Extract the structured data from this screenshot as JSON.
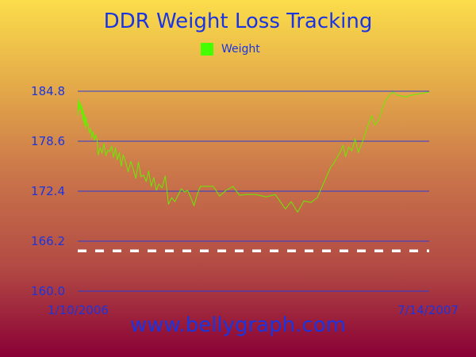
{
  "colors": {
    "text": "#1a35e0",
    "gridline": "#2a3bd6",
    "series": "#66ee00",
    "legend_swatch": "#44ff00",
    "goal_line": "#ffffff"
  },
  "footer": {
    "url": "www.bellygraph.com"
  },
  "chart_data": {
    "type": "line",
    "title": "DDR Weight Loss Tracking",
    "xlabel": "",
    "ylabel": "",
    "ylim": [
      160.0,
      184.8
    ],
    "yticks": [
      "160.0",
      "166.2",
      "172.4",
      "178.6",
      "184.8"
    ],
    "xlim": [
      "2006-01-10",
      "2007-07-14"
    ],
    "xtick_labels": [
      "1/10/2006",
      "7/14/2007"
    ],
    "grid": "horizontal",
    "legend": "top-center",
    "goal": {
      "value": 165.0,
      "style": "dashed"
    },
    "series": [
      {
        "name": "Weight",
        "x": [
          "2006-01-10",
          "2006-01-11",
          "2006-01-12",
          "2006-01-13",
          "2006-01-14",
          "2006-01-15",
          "2006-01-16",
          "2006-01-17",
          "2006-01-18",
          "2006-01-19",
          "2006-01-20",
          "2006-01-21",
          "2006-01-22",
          "2006-01-23",
          "2006-01-24",
          "2006-01-26",
          "2006-01-28",
          "2006-01-30",
          "2006-02-01",
          "2006-02-03",
          "2006-02-05",
          "2006-02-07",
          "2006-02-09",
          "2006-02-11",
          "2006-02-14",
          "2006-02-17",
          "2006-02-20",
          "2006-02-23",
          "2006-02-26",
          "2006-03-01",
          "2006-03-04",
          "2006-03-07",
          "2006-03-10",
          "2006-03-13",
          "2006-03-16",
          "2006-03-19",
          "2006-03-22",
          "2006-03-26",
          "2006-03-30",
          "2006-04-03",
          "2006-04-07",
          "2006-04-11",
          "2006-04-15",
          "2006-04-19",
          "2006-04-23",
          "2006-04-27",
          "2006-05-01",
          "2006-05-05",
          "2006-05-09",
          "2006-05-13",
          "2006-05-17",
          "2006-05-22",
          "2006-05-27",
          "2006-06-01",
          "2006-06-06",
          "2006-06-11",
          "2006-06-16",
          "2006-06-21",
          "2006-06-26",
          "2006-07-01",
          "2006-07-06",
          "2006-07-11",
          "2006-07-16",
          "2006-07-21",
          "2006-07-26",
          "2006-08-01",
          "2006-08-10",
          "2006-08-20",
          "2006-08-30",
          "2006-09-10",
          "2006-09-20",
          "2006-10-01",
          "2006-10-15",
          "2006-11-01",
          "2006-11-15",
          "2006-12-01",
          "2006-12-10",
          "2006-12-20",
          "2006-12-30",
          "2007-01-10",
          "2007-01-20",
          "2007-02-01",
          "2007-02-10",
          "2007-02-15",
          "2007-02-20",
          "2007-02-25",
          "2007-03-01",
          "2007-03-05",
          "2007-03-10",
          "2007-03-15",
          "2007-03-20",
          "2007-03-25",
          "2007-04-01",
          "2007-04-08",
          "2007-04-15",
          "2007-04-20",
          "2007-04-25",
          "2007-04-28",
          "2007-05-01",
          "2007-05-03",
          "2007-05-06",
          "2007-05-09",
          "2007-05-12",
          "2007-05-15",
          "2007-05-18",
          "2007-05-22",
          "2007-05-26",
          "2007-06-01",
          "2007-06-08",
          "2007-06-15",
          "2007-06-22",
          "2007-06-30",
          "2007-07-07",
          "2007-07-14"
        ],
        "values": [
          181.8,
          183.8,
          182.4,
          183.5,
          182.6,
          183.2,
          182.0,
          182.9,
          181.2,
          182.4,
          180.7,
          181.9,
          180.2,
          181.6,
          180.5,
          180.8,
          179.6,
          180.2,
          179.0,
          179.8,
          178.7,
          179.4,
          178.9,
          176.9,
          177.8,
          177.1,
          178.3,
          176.8,
          177.5,
          177.3,
          178.0,
          176.6,
          177.8,
          176.3,
          177.2,
          175.5,
          176.9,
          176.0,
          174.8,
          176.1,
          175.1,
          174.0,
          176.0,
          174.2,
          174.4,
          173.6,
          174.9,
          173.0,
          174.1,
          172.5,
          173.3,
          172.8,
          174.3,
          170.8,
          171.6,
          171.1,
          171.9,
          172.7,
          172.3,
          172.5,
          171.6,
          170.6,
          172.0,
          173.0,
          173.0,
          173.0,
          173.0,
          171.8,
          172.5,
          173.0,
          171.9,
          172.0,
          172.0,
          171.7,
          172.0,
          170.2,
          171.1,
          169.8,
          171.2,
          171.0,
          171.6,
          173.8,
          175.4,
          175.9,
          176.6,
          177.3,
          178.1,
          176.7,
          177.9,
          177.4,
          178.9,
          177.2,
          178.6,
          180.3,
          181.8,
          180.6,
          181.1,
          181.7,
          182.4,
          183.0,
          183.5,
          183.9,
          184.2,
          184.5,
          184.7,
          184.5,
          184.3,
          184.2,
          184.1,
          184.3,
          184.4,
          184.5,
          184.6,
          184.7
        ]
      }
    ]
  }
}
